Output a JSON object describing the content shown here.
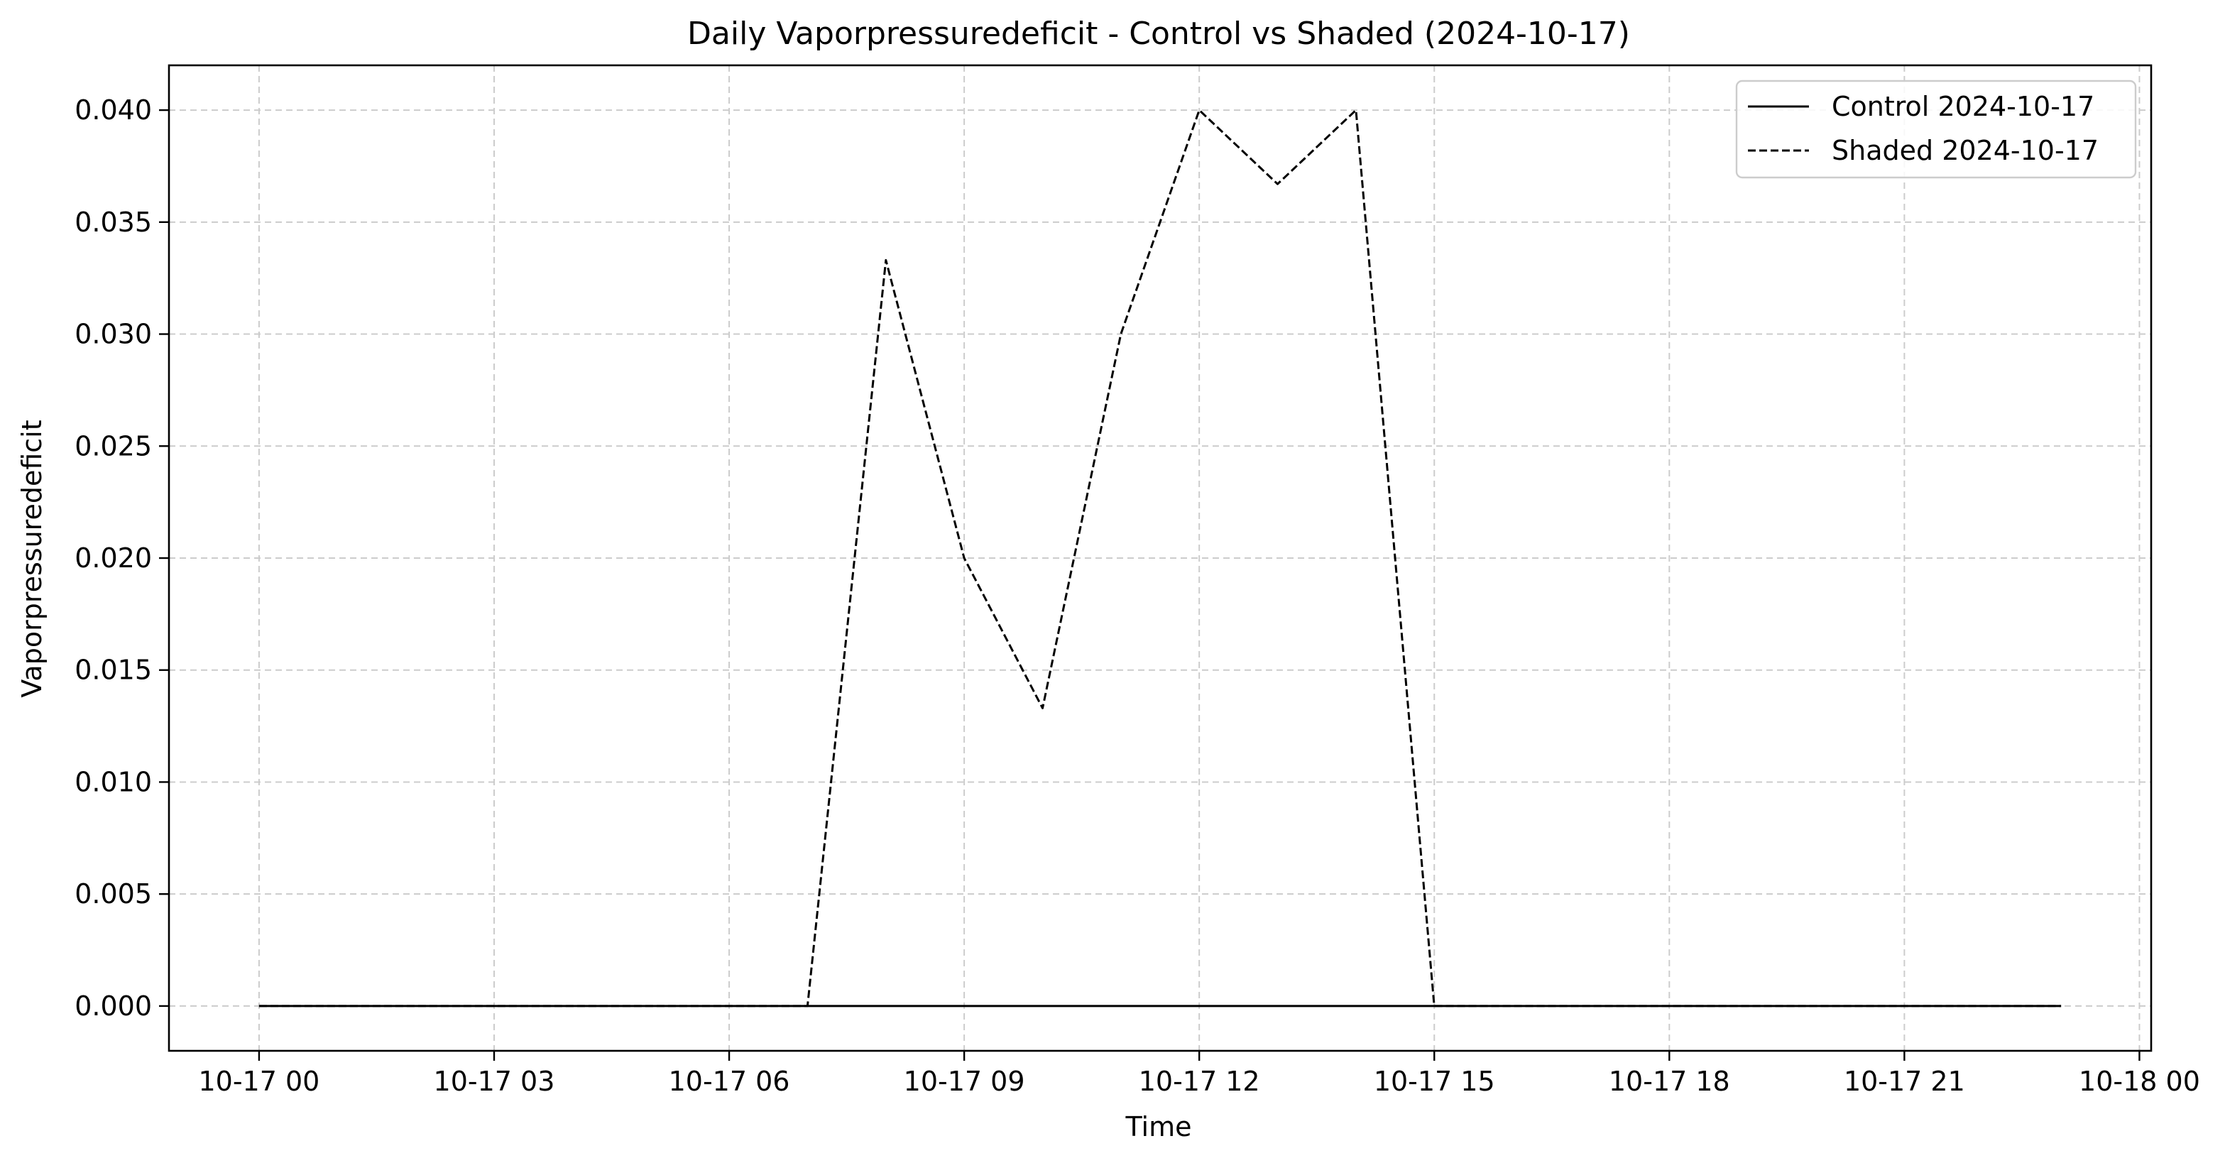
{
  "chart_data": {
    "type": "line",
    "title": "Daily Vaporpressuredeficit - Control vs Shaded (2024-10-17)",
    "xlabel": "Time",
    "ylabel": "Vaporpressuredeficit",
    "x": [
      "2024-10-17 00:00",
      "2024-10-17 01:00",
      "2024-10-17 02:00",
      "2024-10-17 03:00",
      "2024-10-17 04:00",
      "2024-10-17 05:00",
      "2024-10-17 06:00",
      "2024-10-17 07:00",
      "2024-10-17 08:00",
      "2024-10-17 09:00",
      "2024-10-17 10:00",
      "2024-10-17 11:00",
      "2024-10-17 12:00",
      "2024-10-17 13:00",
      "2024-10-17 14:00",
      "2024-10-17 15:00",
      "2024-10-17 16:00",
      "2024-10-17 17:00",
      "2024-10-17 18:00",
      "2024-10-17 19:00",
      "2024-10-17 20:00",
      "2024-10-17 21:00",
      "2024-10-17 22:00",
      "2024-10-17 23:00"
    ],
    "series": [
      {
        "name": "Control 2024-10-17",
        "line_style": "solid",
        "color": "#000000",
        "values": [
          0,
          0,
          0,
          0,
          0,
          0,
          0,
          0,
          0,
          0,
          0,
          0,
          0,
          0,
          0,
          0,
          0,
          0,
          0,
          0,
          0,
          0,
          0,
          0
        ]
      },
      {
        "name": "Shaded 2024-10-17",
        "line_style": "dashed",
        "color": "#000000",
        "values": [
          0,
          0,
          0,
          0,
          0,
          0,
          0,
          0,
          0.0333,
          0.02,
          0.0133,
          0.03,
          0.04,
          0.0367,
          0.04,
          0,
          0,
          0,
          0,
          0,
          0,
          0,
          0,
          0
        ]
      }
    ],
    "xlim": [
      "2024-10-16 22:51",
      "2024-10-18 00:09"
    ],
    "ylim": [
      -0.002,
      0.042
    ],
    "x_ticks": [
      "2024-10-17 00:00",
      "2024-10-17 03:00",
      "2024-10-17 06:00",
      "2024-10-17 09:00",
      "2024-10-17 12:00",
      "2024-10-17 15:00",
      "2024-10-17 18:00",
      "2024-10-17 21:00",
      "2024-10-18 00:00"
    ],
    "x_tick_labels": [
      "10-17 00",
      "10-17 03",
      "10-17 06",
      "10-17 09",
      "10-17 12",
      "10-17 15",
      "10-17 18",
      "10-17 21",
      "10-18 00"
    ],
    "y_ticks": [
      0,
      0.005,
      0.01,
      0.015,
      0.02,
      0.025,
      0.03,
      0.035,
      0.04
    ],
    "y_tick_labels": [
      "0.000",
      "0.005",
      "0.010",
      "0.015",
      "0.020",
      "0.025",
      "0.030",
      "0.035",
      "0.040"
    ],
    "grid": true,
    "grid_style": "dashed",
    "legend_position": "top-right"
  }
}
